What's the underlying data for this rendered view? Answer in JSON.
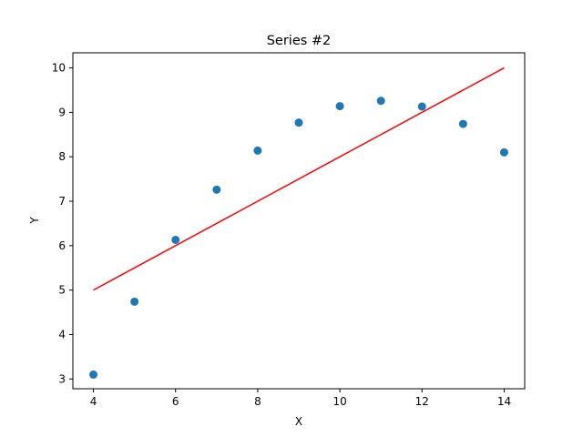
{
  "chart_data": {
    "type": "scatter",
    "title": "Series #2",
    "xlabel": "X",
    "ylabel": "Y",
    "xlim": [
      3.5,
      14.5
    ],
    "ylim": [
      2.78,
      10.34
    ],
    "xticks": [
      4,
      6,
      8,
      10,
      12,
      14
    ],
    "yticks": [
      3,
      4,
      5,
      6,
      7,
      8,
      9,
      10
    ],
    "grid": false,
    "series": [
      {
        "type": "scatter",
        "color": "#1f77b4",
        "x": [
          4,
          5,
          6,
          7,
          8,
          9,
          10,
          11,
          12,
          13,
          14
        ],
        "y": [
          3.1,
          4.74,
          6.13,
          7.26,
          8.14,
          8.77,
          9.14,
          9.26,
          9.13,
          8.74,
          8.1
        ]
      },
      {
        "type": "line",
        "color": "#ff0000",
        "x": [
          4,
          14
        ],
        "y": [
          5.0,
          10.0
        ]
      }
    ]
  }
}
